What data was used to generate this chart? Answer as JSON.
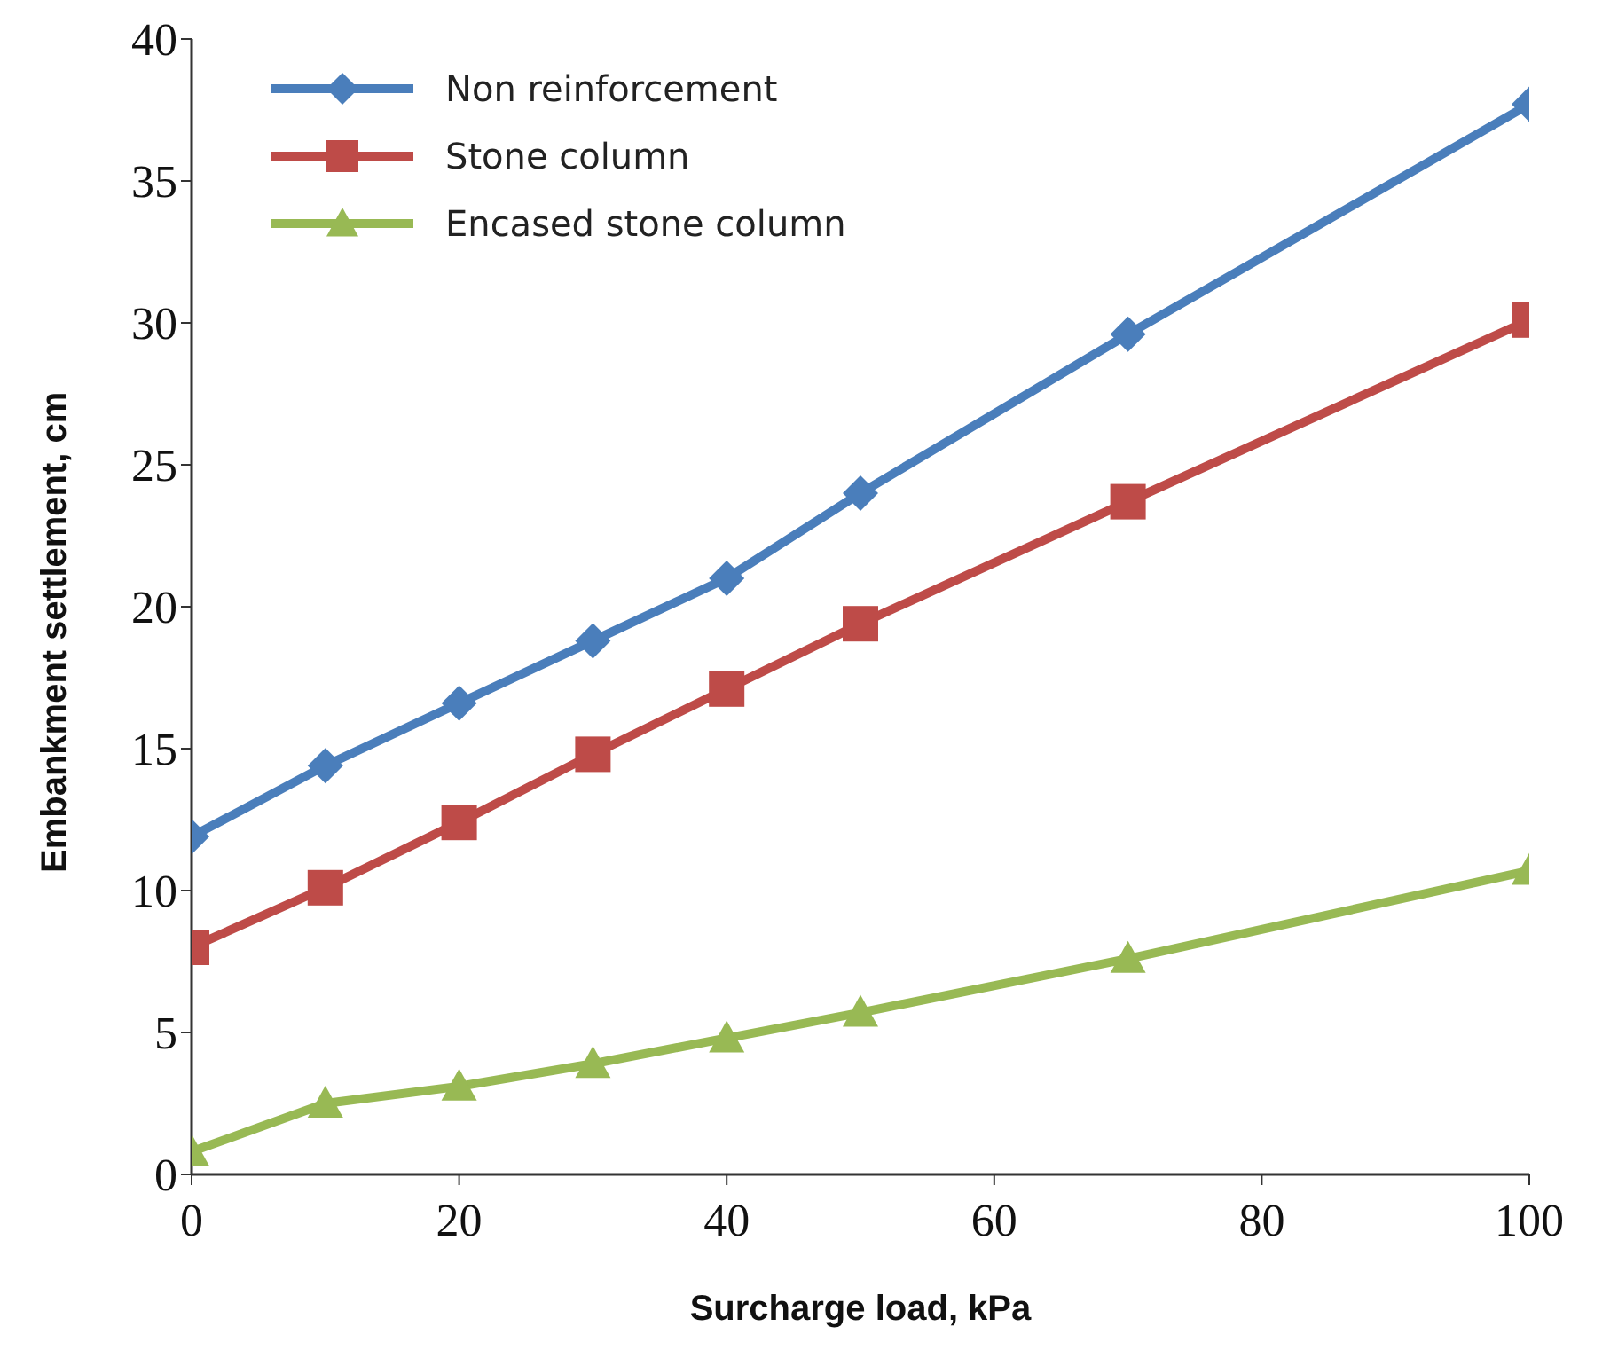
{
  "chart_data": {
    "type": "line",
    "xlabel": "Surcharge load, kPa",
    "ylabel": "Embankment settlement, cm",
    "x": [
      0,
      10,
      20,
      30,
      40,
      50,
      70,
      100
    ],
    "series": [
      {
        "name": "Non reinforcement",
        "color": "#4a7ebb",
        "marker": "diamond",
        "values": [
          11.9,
          14.4,
          16.6,
          18.8,
          21.0,
          24.0,
          29.6,
          37.7
        ]
      },
      {
        "name": "Stone column",
        "color": "#be4b48",
        "marker": "square",
        "values": [
          8.0,
          10.1,
          12.4,
          14.8,
          17.1,
          19.4,
          23.7,
          30.1
        ]
      },
      {
        "name": "Encased stone column",
        "color": "#98b954",
        "marker": "triangle",
        "values": [
          0.8,
          2.5,
          3.1,
          3.9,
          4.8,
          5.7,
          7.6,
          10.7
        ]
      }
    ],
    "xlim": [
      0,
      100
    ],
    "xticks": [
      0,
      20,
      40,
      60,
      80,
      100
    ],
    "ylim": [
      0,
      40
    ],
    "yticks": [
      0,
      5,
      10,
      15,
      20,
      25,
      30,
      35,
      40
    ],
    "grid": false,
    "legend": "top left",
    "line_style": "solid"
  }
}
